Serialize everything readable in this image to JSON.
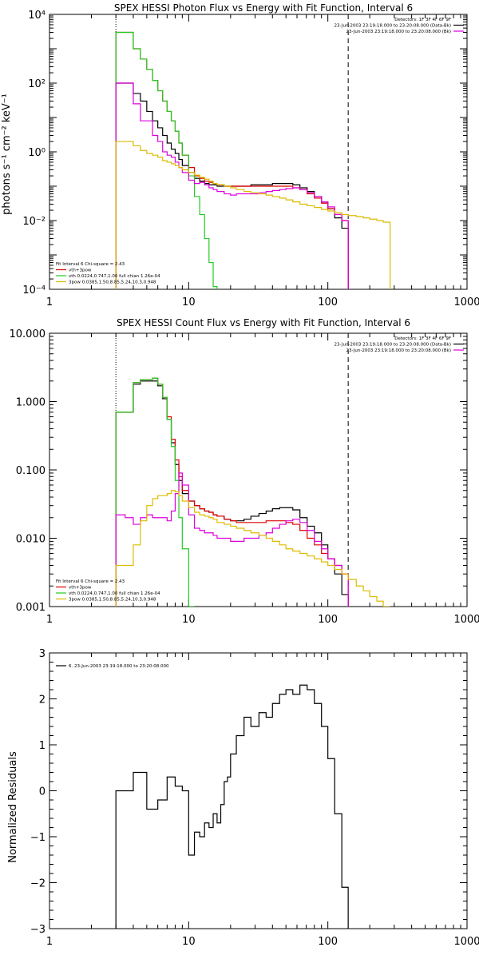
{
  "colors": {
    "black": "#000000",
    "red": "#e00000",
    "green": "#22cc22",
    "magenta": "#dd00dd",
    "yellow": "#ddbb00"
  },
  "chart_data": [
    {
      "type": "line",
      "title": "SPEX HESSI Photon Flux vs Energy with Fit Function, Interval 6",
      "ylabel": "photons s⁻¹ cm⁻² keV⁻¹",
      "xscale": "log",
      "yscale": "log",
      "xlim": [
        1,
        1000
      ],
      "ylim": [
        0.0001,
        10000
      ],
      "xticks": [
        1,
        10,
        100,
        1000
      ],
      "xtick_labels": [
        "1",
        "10",
        "100",
        "1000"
      ],
      "yticks": [
        0.0001,
        0.01,
        1,
        100,
        10000
      ],
      "ytick_labels": [
        "10⁻⁴",
        "10⁻²",
        "10⁰",
        "10²",
        "10⁴"
      ],
      "vlines": [
        {
          "x": 3,
          "style": "dotted"
        },
        {
          "x": 140,
          "style": "dashed"
        }
      ],
      "legend_tr": [
        {
          "text": "Detectors: 1F 3F 4F 6F 9F",
          "color": ""
        },
        {
          "text": "23-Jun-2003 23:19:18.000 to 23:20:08.000 (Data-Bk)",
          "color": "#000000"
        },
        {
          "text": "23-Jun-2003 23:19:18.000 to 23:20:08.000 (Bk)",
          "color": "#dd00dd"
        }
      ],
      "legend_bl": [
        {
          "text": "Fit Interval 6   Chi-square = 2.43",
          "color": ""
        },
        {
          "text": "vth+3pow",
          "color": "#e00000"
        },
        {
          "text": "vth 0.0224,0.747,1.00  full chian 1.26e-04",
          "color": "#22cc22"
        },
        {
          "text": "3pow 0.0385,1.50,8.85,5.24,10.3,0.948",
          "color": "#ddbb00"
        }
      ],
      "edges": [
        3,
        3.5,
        4,
        4.5,
        5,
        5.5,
        6,
        6.5,
        7,
        7.5,
        8,
        8.5,
        9,
        10,
        11,
        12,
        13,
        14,
        15,
        16,
        18,
        20,
        22,
        25,
        28,
        32,
        36,
        40,
        45,
        50,
        56,
        63,
        71,
        80,
        90,
        100,
        112,
        126,
        140,
        160,
        180,
        200,
        225,
        250,
        280
      ],
      "series": [
        {
          "color": "#000000",
          "values": [
            100,
            100,
            50,
            30,
            15,
            8,
            5,
            3,
            1.8,
            1.2,
            0.9,
            0.6,
            0.4,
            0.25,
            0.17,
            0.14,
            0.12,
            0.11,
            0.11,
            0.1,
            0.1,
            0.1,
            0.1,
            0.1,
            0.11,
            0.11,
            0.11,
            0.12,
            0.12,
            0.12,
            0.11,
            0.09,
            0.07,
            0.05,
            0.035,
            0.022,
            0.012,
            0.006
          ]
        },
        {
          "color": "#e00000",
          "values": [
            3000,
            3000,
            1000,
            500,
            250,
            120,
            60,
            30,
            15,
            8,
            4,
            1.8,
            0.8,
            0.35,
            0.2,
            0.17,
            0.14,
            0.13,
            0.12,
            0.11,
            0.1,
            0.1,
            0.1,
            0.1,
            0.1,
            0.1,
            0.1,
            0.1,
            0.1,
            0.1,
            0.09,
            0.08,
            0.06,
            0.045,
            0.032,
            0.022,
            0.015,
            0.01
          ]
        },
        {
          "color": "#22cc22",
          "values": [
            3000,
            3000,
            1000,
            500,
            250,
            120,
            60,
            30,
            15,
            8,
            4,
            1.8,
            0.8,
            0.2,
            0.05,
            0.015,
            0.003,
            0.0006,
            0.00012
          ]
        },
        {
          "color": "#dd00dd",
          "values": [
            100,
            100,
            25,
            8,
            8,
            3,
            2,
            1,
            0.8,
            0.7,
            0.5,
            0.35,
            0.25,
            0.15,
            0.12,
            0.13,
            0.11,
            0.09,
            0.08,
            0.07,
            0.06,
            0.055,
            0.06,
            0.06,
            0.06,
            0.065,
            0.07,
            0.075,
            0.08,
            0.085,
            0.09,
            0.08,
            0.065,
            0.05,
            0.035,
            0.025,
            0.015,
            0.01
          ]
        },
        {
          "color": "#ddbb00",
          "values": [
            2,
            2,
            1.5,
            1.1,
            0.9,
            0.8,
            0.7,
            0.55,
            0.5,
            0.45,
            0.4,
            0.35,
            0.3,
            0.25,
            0.21,
            0.18,
            0.16,
            0.14,
            0.12,
            0.11,
            0.1,
            0.09,
            0.08,
            0.07,
            0.065,
            0.06,
            0.055,
            0.05,
            0.045,
            0.04,
            0.035,
            0.03,
            0.027,
            0.024,
            0.021,
            0.019,
            0.017,
            0.015,
            0.014,
            0.013,
            0.012,
            0.011,
            0.01,
            0.009
          ]
        }
      ]
    },
    {
      "type": "line",
      "title": "SPEX HESSI Count Flux vs Energy with Fit Function, Interval 6",
      "ylabel": "",
      "xscale": "log",
      "yscale": "log",
      "xlim": [
        1,
        1000
      ],
      "ylim": [
        0.001,
        10
      ],
      "xticks": [
        1,
        10,
        100,
        1000
      ],
      "xtick_labels": [
        "1",
        "10",
        "100",
        "1000"
      ],
      "yticks": [
        0.001,
        0.01,
        0.1,
        1,
        10
      ],
      "ytick_labels": [
        "0.001",
        "0.010",
        "0.100",
        "1.000",
        "10.000"
      ],
      "vlines": [
        {
          "x": 3,
          "style": "dotted"
        },
        {
          "x": 140,
          "style": "dashed"
        }
      ],
      "legend_tr": [
        {
          "text": "Detectors: 1F 3F 4F 6F 9F",
          "color": ""
        },
        {
          "text": "23-Jun-2003 23:19:18.000 to 23:20:08.000 (Data-Bk)",
          "color": "#000000"
        },
        {
          "text": "23-Jun-2003 23:19:18.000 to 23:20:08.000 (Bk)",
          "color": "#dd00dd"
        }
      ],
      "legend_bl": [
        {
          "text": "Fit Interval 6   Chi-square = 2.43",
          "color": ""
        },
        {
          "text": "vth+3pow",
          "color": "#e00000"
        },
        {
          "text": "vth 0.0224,0.747,1.00  full chian 1.26e-04",
          "color": "#22cc22"
        },
        {
          "text": "3pow 0.0385,1.50,8.85,5.24,10.3,0.948",
          "color": "#ddbb00"
        }
      ],
      "edges": [
        3,
        3.5,
        4,
        4.5,
        5,
        5.5,
        6,
        6.5,
        7,
        7.5,
        8,
        8.5,
        9,
        10,
        11,
        12,
        13,
        14,
        15,
        16,
        18,
        20,
        22,
        25,
        28,
        32,
        36,
        40,
        45,
        50,
        56,
        63,
        71,
        80,
        90,
        100,
        112,
        126,
        140,
        160,
        180,
        200,
        225,
        250,
        280
      ],
      "series": [
        {
          "color": "#000000",
          "values": [
            0.7,
            0.7,
            1.8,
            2,
            2,
            2,
            1.7,
            1.1,
            0.55,
            0.25,
            0.12,
            0.07,
            0.045,
            0.035,
            0.03,
            0.027,
            0.025,
            0.024,
            0.022,
            0.021,
            0.019,
            0.018,
            0.018,
            0.019,
            0.021,
            0.023,
            0.025,
            0.027,
            0.028,
            0.028,
            0.026,
            0.02,
            0.015,
            0.012,
            0.008,
            0.005,
            0.003,
            0.0015
          ]
        },
        {
          "color": "#e00000",
          "values": [
            0.7,
            0.7,
            1.9,
            2.1,
            2.1,
            2.2,
            1.8,
            1.15,
            0.6,
            0.28,
            0.14,
            0.08,
            0.05,
            0.035,
            0.03,
            0.027,
            0.025,
            0.024,
            0.022,
            0.021,
            0.019,
            0.018,
            0.017,
            0.017,
            0.017,
            0.017,
            0.018,
            0.018,
            0.018,
            0.017,
            0.016,
            0.013,
            0.01,
            0.008,
            0.006,
            0.005,
            0.004,
            0.003
          ]
        },
        {
          "color": "#22cc22",
          "values": [
            0.7,
            0.7,
            1.9,
            2.1,
            2.1,
            2.2,
            1.8,
            1.15,
            0.55,
            0.22,
            0.07,
            0.02,
            0.007,
            0.001
          ]
        },
        {
          "color": "#dd00dd",
          "values": [
            0.022,
            0.02,
            0.016,
            0.02,
            0.022,
            0.02,
            0.02,
            0.02,
            0.018,
            0.025,
            0.045,
            0.09,
            0.06,
            0.022,
            0.014,
            0.013,
            0.012,
            0.012,
            0.011,
            0.01,
            0.01,
            0.009,
            0.009,
            0.01,
            0.01,
            0.011,
            0.012,
            0.014,
            0.016,
            0.018,
            0.019,
            0.017,
            0.013,
            0.009,
            0.007,
            0.005,
            0.004,
            0.003
          ]
        },
        {
          "color": "#ddbb00",
          "values": [
            0.004,
            0.004,
            0.008,
            0.018,
            0.03,
            0.038,
            0.042,
            0.042,
            0.045,
            0.05,
            0.048,
            0.042,
            0.035,
            0.028,
            0.024,
            0.022,
            0.021,
            0.02,
            0.019,
            0.017,
            0.016,
            0.015,
            0.014,
            0.013,
            0.012,
            0.011,
            0.01,
            0.009,
            0.008,
            0.007,
            0.0065,
            0.006,
            0.0055,
            0.005,
            0.0045,
            0.004,
            0.0035,
            0.003,
            0.0025,
            0.002,
            0.0017,
            0.0014,
            0.0012,
            0.001
          ]
        }
      ]
    },
    {
      "type": "line",
      "title": "",
      "ylabel": "Normalized Residuals",
      "xscale": "log",
      "yscale": "linear",
      "xlim": [
        1,
        1000
      ],
      "ylim": [
        -3,
        3
      ],
      "xticks": [
        1,
        10,
        100,
        1000
      ],
      "xtick_labels": [
        "1",
        "10",
        "100",
        "1000"
      ],
      "yticks": [
        -3,
        -2,
        -1,
        0,
        1,
        2,
        3
      ],
      "ytick_labels": [
        "−3",
        "−2",
        "−1",
        "0",
        "1",
        "2",
        "3"
      ],
      "vlines": [],
      "legend_tr": [],
      "legend_bl": [],
      "legend_tl": [
        {
          "text": "6. 23-Jun-2003 23:19:18.000 to 23:20:08.000",
          "color": "#000000"
        }
      ],
      "edges": [
        3,
        4,
        4.5,
        5,
        5.5,
        6,
        7,
        8,
        9,
        10,
        11,
        12,
        13,
        14,
        15,
        16,
        17,
        18,
        19,
        20,
        22,
        25,
        28,
        32,
        36,
        40,
        45,
        50,
        56,
        63,
        71,
        80,
        90,
        100,
        112,
        126,
        140
      ],
      "series": [
        {
          "color": "#000000",
          "values": [
            0,
            0.4,
            0.4,
            -0.4,
            -0.4,
            -0.2,
            0.3,
            0.1,
            0,
            -1.4,
            -0.9,
            -1,
            -0.7,
            -0.8,
            -0.5,
            -0.7,
            -0.3,
            0.2,
            0.3,
            0.8,
            1.2,
            1.6,
            1.4,
            1.7,
            1.6,
            1.9,
            2.1,
            2.2,
            2.1,
            2.3,
            2.2,
            1.9,
            1.4,
            0.7,
            -0.5,
            -2.1
          ]
        }
      ]
    }
  ]
}
